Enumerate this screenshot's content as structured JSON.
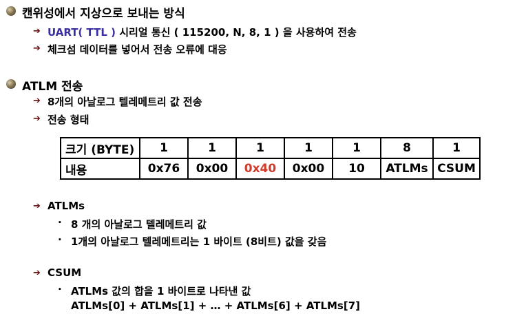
{
  "section1": {
    "title": "캔위성에서 지상으로 보내는 방식",
    "item1": {
      "blue_part": "UART( TTL )",
      "rest": " 시리얼 통신 ( 115200, N, 8, 1 ) 을 사용하여 전송"
    },
    "item2": "체크섬 데이터를 넣어서 전송 오류에 대응"
  },
  "section2": {
    "title": "ATLM 전송",
    "item1": "8개의 아날로그 텔레메트리 값 전송",
    "item2": "전송 형태"
  },
  "table": {
    "size_header": "크기 (BYTE)",
    "sizes": [
      "1",
      "1",
      "1",
      "1",
      "1",
      "8",
      "1"
    ],
    "content_header": "내용",
    "contents": [
      "0x76",
      "0x00",
      "0x40",
      "0x00",
      "10",
      "ATLMs",
      "CSUM"
    ],
    "highlight_color": "#d03a2a"
  },
  "atlms": {
    "label": "ATLMs",
    "sub1": "8 개의 아날로그 텔레메트리 값",
    "sub2": "1개의 아날로그 텔레메트리는 1 바이트 (8비트)  값을 갖음"
  },
  "csum": {
    "label": "CSUM",
    "sub1": "ATLMs 값의 합을 1 바이트로 나타낸 값",
    "formula": "ATLMs[0] + ATLMs[1] + … + ATLMs[6] + ATLMs[7]"
  }
}
